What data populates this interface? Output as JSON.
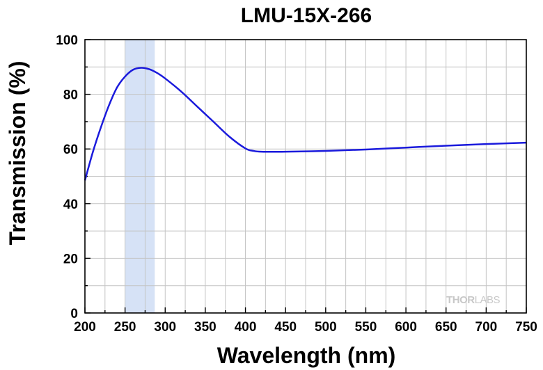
{
  "chart_data": {
    "type": "line",
    "title": "LMU-15X-266",
    "xlabel": "Wavelength (nm)",
    "ylabel": "Transmission (%)",
    "xlim": [
      200,
      750
    ],
    "ylim": [
      0,
      100
    ],
    "x_ticks": [
      200,
      250,
      300,
      350,
      400,
      450,
      500,
      550,
      600,
      650,
      700,
      750
    ],
    "y_ticks": [
      0,
      20,
      40,
      60,
      80,
      100
    ],
    "grid": true,
    "highlight_band": {
      "x_range": [
        250,
        287
      ],
      "color": "#d6e2f6"
    },
    "series": [
      {
        "color": "#1a1adc",
        "x": [
          200,
          210,
          220,
          230,
          240,
          250,
          260,
          270,
          280,
          290,
          300,
          320,
          340,
          360,
          380,
          400,
          410,
          420,
          450,
          500,
          550,
          600,
          650,
          700,
          750
        ],
        "y": [
          48.5,
          59,
          68,
          76,
          82.5,
          86.5,
          89,
          89.7,
          89.2,
          87.8,
          85.8,
          81,
          75.5,
          70,
          64.5,
          60.2,
          59.3,
          59,
          59,
          59.3,
          59.8,
          60.5,
          61.2,
          61.8,
          62.3
        ]
      }
    ],
    "watermark": {
      "left": "THOR",
      "right": "LABS"
    }
  }
}
